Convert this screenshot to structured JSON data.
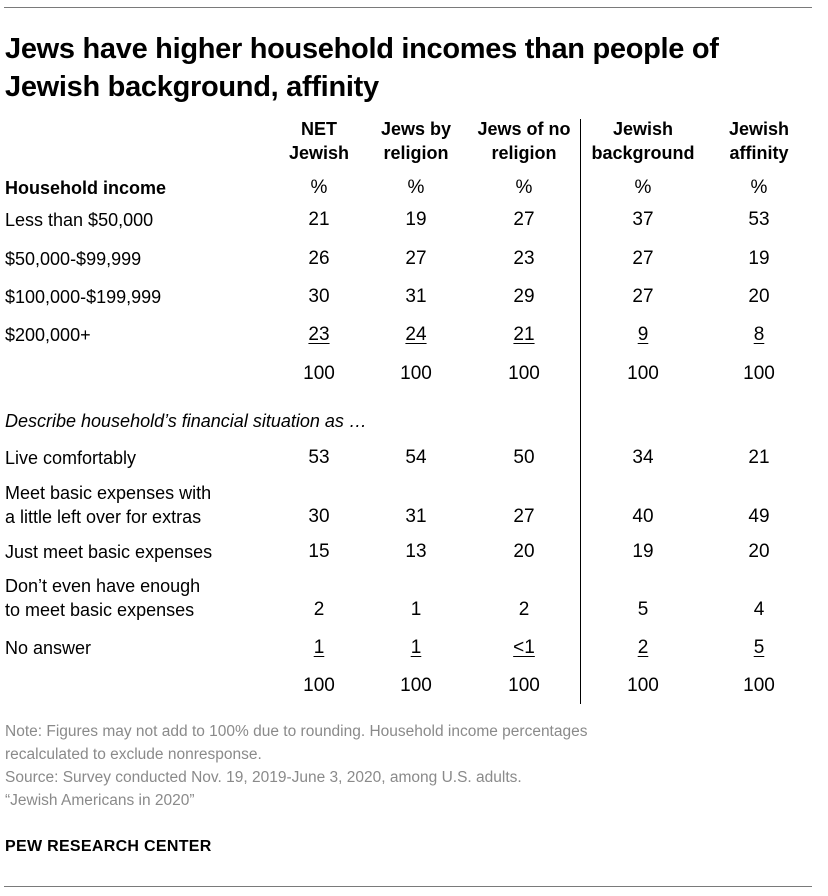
{
  "chart_data": {
    "type": "table",
    "title": "Jews have higher household incomes than people of Jewish background, affinity",
    "columns": [
      {
        "line1": "NET",
        "line2": "Jewish"
      },
      {
        "line1": "Jews by",
        "line2": "religion"
      },
      {
        "line1": "Jews of no",
        "line2": "religion"
      },
      {
        "line1": "Jewish",
        "line2": "background"
      },
      {
        "line1": "Jewish",
        "line2": "affinity"
      }
    ],
    "sections": [
      {
        "header": "Household income",
        "unit_row": [
          "%",
          "%",
          "%",
          "%",
          "%"
        ],
        "rows": [
          {
            "label": [
              "Less than $50,000"
            ],
            "values": [
              "21",
              "19",
              "27",
              "37",
              "53"
            ]
          },
          {
            "label": [
              "$50,000-$99,999"
            ],
            "values": [
              "26",
              "27",
              "23",
              "27",
              "19"
            ]
          },
          {
            "label": [
              "$100,000-$199,999"
            ],
            "values": [
              "30",
              "31",
              "29",
              "27",
              "20"
            ]
          },
          {
            "label": [
              "$200,000+"
            ],
            "values": [
              "23",
              "24",
              "21",
              "9",
              "8"
            ]
          }
        ],
        "total": [
          "100",
          "100",
          "100",
          "100",
          "100"
        ]
      },
      {
        "header": "Describe household’s financial situation as …",
        "rows": [
          {
            "label": [
              "Live comfortably"
            ],
            "values": [
              "53",
              "54",
              "50",
              "34",
              "21"
            ]
          },
          {
            "label": [
              "Meet basic expenses with",
              "a little left over for extras"
            ],
            "values": [
              "30",
              "31",
              "27",
              "40",
              "49"
            ]
          },
          {
            "label": [
              "Just meet basic expenses"
            ],
            "values": [
              "15",
              "13",
              "20",
              "19",
              "20"
            ]
          },
          {
            "label": [
              "Don’t even have enough",
              "to meet basic expenses"
            ],
            "values": [
              "2",
              "1",
              "2",
              "5",
              "4"
            ]
          },
          {
            "label": [
              "No answer"
            ],
            "values": [
              "1",
              "1",
              "<1",
              "2",
              "5"
            ]
          }
        ],
        "total": [
          "100",
          "100",
          "100",
          "100",
          "100"
        ]
      }
    ]
  },
  "notes": {
    "note_line1": "Note: Figures may not add to 100% due to rounding. Household income percentages",
    "note_line2": "recalculated to exclude nonresponse.",
    "source": "Source: Survey conducted Nov. 19, 2019-June 3, 2020, among U.S. adults.",
    "report": "“Jewish Americans in 2020”"
  },
  "brand": "PEW RESEARCH CENTER"
}
